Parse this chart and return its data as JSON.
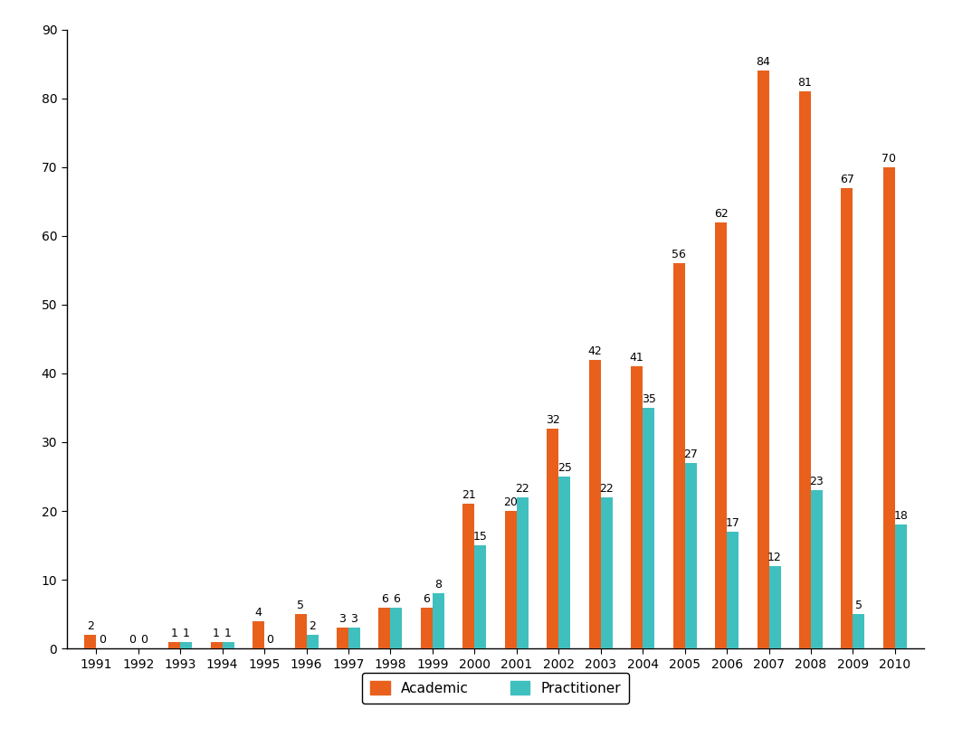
{
  "years": [
    "1991",
    "1992",
    "1993",
    "1994",
    "1995",
    "1996",
    "1997",
    "1998",
    "1999",
    "2000",
    "2001",
    "2002",
    "2003",
    "2004",
    "2005",
    "2006",
    "2007",
    "2008",
    "2009",
    "2010"
  ],
  "academic": [
    2,
    0,
    1,
    1,
    4,
    5,
    3,
    6,
    6,
    21,
    20,
    32,
    42,
    41,
    56,
    62,
    84,
    81,
    67,
    70
  ],
  "practitioner": [
    0,
    0,
    1,
    1,
    0,
    2,
    3,
    6,
    8,
    15,
    22,
    25,
    22,
    35,
    27,
    17,
    12,
    23,
    5,
    18
  ],
  "academic_color": "#E8601C",
  "practitioner_color": "#40BFBF",
  "ylim": [
    0,
    90
  ],
  "yticks": [
    0,
    10,
    20,
    30,
    40,
    50,
    60,
    70,
    80,
    90
  ],
  "legend_labels": [
    "Academic",
    "Practitioner"
  ],
  "bar_width": 0.28,
  "label_fontsize": 9,
  "tick_fontsize": 10,
  "background_color": "#ffffff"
}
